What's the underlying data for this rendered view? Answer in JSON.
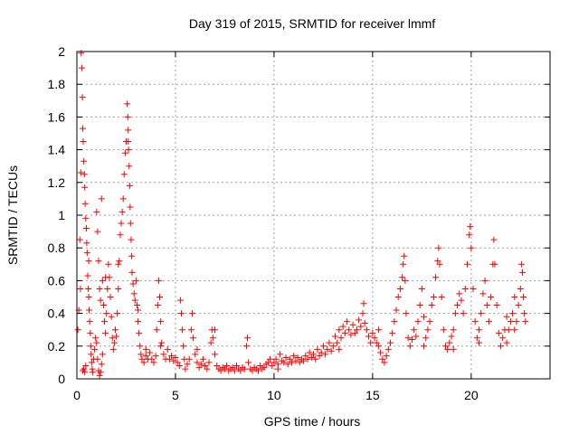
{
  "chart_data": {
    "type": "scatter",
    "title": "Day 319 of 2015, SRMTID for receiver lmmf",
    "xlabel": "GPS time / hours",
    "ylabel": "SRMTID / TECUs",
    "xlim": [
      0,
      24
    ],
    "ylim": [
      0,
      2
    ],
    "xticks": [
      "0",
      "5",
      "10",
      "15",
      "20"
    ],
    "yticks": [
      "0",
      "0.2",
      "0.4",
      "0.6",
      "0.8",
      "1",
      "1.2",
      "1.4",
      "1.6",
      "1.8",
      "2"
    ],
    "grid": true,
    "marker": "+",
    "color": "#ff0000",
    "series": [
      {
        "points": [
          [
            0.05,
            0.3
          ],
          [
            0.1,
            0.42
          ],
          [
            0.15,
            0.85
          ],
          [
            0.2,
            1.26
          ],
          [
            0.22,
            1.99
          ],
          [
            0.25,
            1.9
          ],
          [
            0.28,
            1.72
          ],
          [
            0.3,
            1.53
          ],
          [
            0.32,
            1.45
          ],
          [
            0.35,
            1.33
          ],
          [
            0.38,
            1.25
          ],
          [
            0.4,
            1.17
          ],
          [
            0.42,
            1.07
          ],
          [
            0.45,
            0.98
          ],
          [
            0.48,
            0.92
          ],
          [
            0.5,
            0.83
          ],
          [
            0.52,
            0.77
          ],
          [
            0.55,
            0.63
          ],
          [
            0.58,
            0.55
          ],
          [
            0.6,
            0.5
          ],
          [
            0.62,
            0.42
          ],
          [
            0.65,
            0.35
          ],
          [
            0.68,
            0.28
          ],
          [
            0.7,
            0.2
          ],
          [
            0.72,
            0.15
          ],
          [
            0.75,
            0.1
          ],
          [
            0.78,
            0.06
          ],
          [
            0.8,
            0.04
          ],
          [
            0.3,
            0.05
          ],
          [
            0.35,
            0.06
          ],
          [
            0.4,
            0.04
          ],
          [
            0.45,
            0.08
          ],
          [
            0.85,
            0.12
          ],
          [
            0.9,
            0.18
          ],
          [
            0.95,
            0.25
          ],
          [
            1.0,
            0.22
          ],
          [
            1.05,
            0.12
          ],
          [
            1.1,
            0.05
          ],
          [
            1.15,
            0.02
          ],
          [
            1.2,
            0.04
          ],
          [
            1.25,
            0.09
          ],
          [
            1.3,
            0.15
          ],
          [
            1.0,
            1.02
          ],
          [
            1.05,
            0.9
          ],
          [
            1.1,
            0.72
          ],
          [
            1.15,
            0.55
          ],
          [
            1.2,
            0.48
          ],
          [
            1.25,
            1.1
          ],
          [
            1.3,
            0.6
          ],
          [
            1.35,
            0.45
          ],
          [
            1.4,
            0.35
          ],
          [
            1.45,
            0.28
          ],
          [
            1.5,
            0.4
          ],
          [
            1.55,
            0.55
          ],
          [
            1.6,
            0.7
          ],
          [
            1.65,
            0.62
          ],
          [
            1.7,
            0.5
          ],
          [
            1.75,
            0.38
          ],
          [
            1.8,
            0.25
          ],
          [
            1.85,
            0.18
          ],
          [
            1.9,
            0.22
          ],
          [
            1.95,
            0.3
          ],
          [
            2.0,
            0.26
          ],
          [
            2.05,
            0.4
          ],
          [
            2.1,
            0.55
          ],
          [
            2.15,
            0.72
          ],
          [
            2.2,
            0.88
          ],
          [
            2.25,
            0.95
          ],
          [
            2.3,
            1.02
          ],
          [
            2.35,
            1.1
          ],
          [
            2.4,
            1.25
          ],
          [
            2.45,
            1.38
          ],
          [
            2.5,
            1.45
          ],
          [
            2.55,
            1.68
          ],
          [
            2.58,
            1.6
          ],
          [
            2.6,
            1.52
          ],
          [
            2.62,
            1.4
          ],
          [
            2.65,
            1.3
          ],
          [
            2.68,
            1.18
          ],
          [
            2.7,
            1.05
          ],
          [
            2.72,
            0.95
          ],
          [
            2.75,
            0.85
          ],
          [
            2.78,
            0.75
          ],
          [
            2.8,
            0.65
          ],
          [
            2.85,
            0.58
          ],
          [
            2.9,
            0.52
          ],
          [
            2.95,
            0.48
          ],
          [
            3.0,
            0.6
          ],
          [
            3.05,
            0.45
          ],
          [
            3.1,
            0.35
          ],
          [
            3.15,
            0.28
          ],
          [
            3.2,
            0.2
          ],
          [
            3.25,
            0.15
          ],
          [
            3.3,
            0.12
          ],
          [
            3.4,
            0.1
          ],
          [
            3.5,
            0.14
          ],
          [
            3.6,
            0.12
          ],
          [
            3.7,
            0.16
          ],
          [
            3.8,
            0.12
          ],
          [
            3.9,
            0.1
          ],
          [
            4.0,
            0.14
          ],
          [
            4.05,
            0.3
          ],
          [
            4.1,
            0.45
          ],
          [
            4.15,
            0.6
          ],
          [
            4.2,
            0.5
          ],
          [
            4.25,
            0.35
          ],
          [
            4.3,
            0.22
          ],
          [
            4.4,
            0.15
          ],
          [
            4.5,
            0.12
          ],
          [
            4.6,
            0.18
          ],
          [
            4.7,
            0.12
          ],
          [
            4.8,
            0.14
          ],
          [
            4.9,
            0.11
          ],
          [
            5.0,
            0.13
          ],
          [
            5.1,
            0.1
          ],
          [
            5.2,
            0.08
          ],
          [
            5.25,
            0.48
          ],
          [
            5.3,
            0.4
          ],
          [
            5.35,
            0.3
          ],
          [
            5.4,
            0.2
          ],
          [
            5.45,
            0.12
          ],
          [
            5.5,
            0.06
          ],
          [
            5.6,
            0.09
          ],
          [
            5.7,
            0.12
          ],
          [
            5.8,
            0.3
          ],
          [
            5.85,
            0.4
          ],
          [
            5.9,
            0.25
          ],
          [
            6.0,
            0.15
          ],
          [
            6.1,
            0.1
          ],
          [
            6.2,
            0.07
          ],
          [
            6.3,
            0.09
          ],
          [
            6.4,
            0.12
          ],
          [
            6.5,
            0.08
          ],
          [
            6.6,
            0.06
          ],
          [
            6.7,
            0.1
          ],
          [
            6.8,
            0.22
          ],
          [
            6.85,
            0.3
          ],
          [
            6.9,
            0.25
          ],
          [
            7.0,
            0.15
          ],
          [
            7.1,
            0.08
          ],
          [
            7.2,
            0.06
          ],
          [
            7.3,
            0.05
          ],
          [
            7.4,
            0.07
          ],
          [
            7.5,
            0.06
          ],
          [
            7.6,
            0.08
          ],
          [
            7.7,
            0.05
          ],
          [
            7.8,
            0.06
          ],
          [
            7.9,
            0.07
          ],
          [
            8.0,
            0.05
          ],
          [
            8.1,
            0.08
          ],
          [
            8.2,
            0.06
          ],
          [
            8.3,
            0.05
          ],
          [
            8.4,
            0.07
          ],
          [
            8.5,
            0.06
          ],
          [
            8.6,
            0.2
          ],
          [
            8.65,
            0.25
          ],
          [
            8.7,
            0.1
          ],
          [
            8.8,
            0.06
          ],
          [
            8.9,
            0.05
          ],
          [
            9.0,
            0.07
          ],
          [
            9.1,
            0.06
          ],
          [
            9.2,
            0.05
          ],
          [
            9.3,
            0.08
          ],
          [
            9.4,
            0.06
          ],
          [
            9.5,
            0.07
          ],
          [
            9.6,
            0.09
          ],
          [
            9.7,
            0.1
          ],
          [
            9.8,
            0.12
          ],
          [
            9.9,
            0.08
          ],
          [
            10.0,
            0.1
          ],
          [
            10.1,
            0.12
          ],
          [
            10.2,
            0.09
          ],
          [
            10.3,
            0.15
          ],
          [
            10.4,
            0.11
          ],
          [
            10.5,
            0.1
          ],
          [
            10.6,
            0.13
          ],
          [
            10.7,
            0.09
          ],
          [
            10.8,
            0.12
          ],
          [
            10.9,
            0.1
          ],
          [
            11.0,
            0.14
          ],
          [
            11.1,
            0.11
          ],
          [
            11.2,
            0.13
          ],
          [
            11.3,
            0.1
          ],
          [
            11.4,
            0.12
          ],
          [
            11.5,
            0.11
          ],
          [
            11.6,
            0.14
          ],
          [
            11.7,
            0.12
          ],
          [
            11.8,
            0.16
          ],
          [
            11.9,
            0.13
          ],
          [
            12.0,
            0.15
          ],
          [
            12.1,
            0.12
          ],
          [
            12.2,
            0.18
          ],
          [
            12.3,
            0.14
          ],
          [
            12.4,
            0.16
          ],
          [
            12.5,
            0.2
          ],
          [
            12.6,
            0.15
          ],
          [
            12.7,
            0.18
          ],
          [
            12.8,
            0.22
          ],
          [
            12.9,
            0.17
          ],
          [
            13.0,
            0.2
          ],
          [
            13.1,
            0.26
          ],
          [
            13.2,
            0.22
          ],
          [
            13.3,
            0.3
          ],
          [
            13.4,
            0.25
          ],
          [
            13.5,
            0.32
          ],
          [
            13.6,
            0.28
          ],
          [
            13.7,
            0.35
          ],
          [
            13.8,
            0.3
          ],
          [
            13.9,
            0.27
          ],
          [
            14.0,
            0.33
          ],
          [
            14.1,
            0.28
          ],
          [
            14.2,
            0.3
          ],
          [
            14.3,
            0.36
          ],
          [
            14.4,
            0.32
          ],
          [
            14.5,
            0.4
          ],
          [
            14.55,
            0.46
          ],
          [
            14.6,
            0.34
          ],
          [
            14.7,
            0.3
          ],
          [
            14.8,
            0.26
          ],
          [
            14.9,
            0.22
          ],
          [
            15.0,
            0.28
          ],
          [
            15.1,
            0.25
          ],
          [
            15.2,
            0.22
          ],
          [
            15.3,
            0.2
          ],
          [
            15.4,
            0.16
          ],
          [
            15.5,
            0.12
          ],
          [
            15.6,
            0.1
          ],
          [
            15.7,
            0.14
          ],
          [
            15.8,
            0.18
          ],
          [
            15.9,
            0.22
          ],
          [
            16.0,
            0.28
          ],
          [
            16.1,
            0.35
          ],
          [
            16.2,
            0.42
          ],
          [
            16.3,
            0.5
          ],
          [
            16.4,
            0.55
          ],
          [
            16.5,
            0.62
          ],
          [
            16.55,
            0.7
          ],
          [
            16.6,
            0.75
          ],
          [
            16.65,
            0.6
          ],
          [
            16.7,
            0.4
          ],
          [
            16.8,
            0.25
          ],
          [
            16.9,
            0.2
          ],
          [
            17.0,
            0.24
          ],
          [
            17.1,
            0.3
          ],
          [
            17.2,
            0.26
          ],
          [
            17.3,
            0.35
          ],
          [
            17.4,
            0.45
          ],
          [
            17.5,
            0.55
          ],
          [
            17.6,
            0.38
          ],
          [
            17.7,
            0.25
          ],
          [
            17.8,
            0.3
          ],
          [
            17.9,
            0.35
          ],
          [
            18.0,
            0.45
          ],
          [
            18.1,
            0.5
          ],
          [
            18.2,
            0.62
          ],
          [
            18.3,
            0.72
          ],
          [
            18.35,
            0.8
          ],
          [
            18.4,
            0.7
          ],
          [
            18.5,
            0.5
          ],
          [
            18.6,
            0.3
          ],
          [
            18.7,
            0.2
          ],
          [
            18.8,
            0.18
          ],
          [
            18.9,
            0.22
          ],
          [
            19.0,
            0.26
          ],
          [
            19.1,
            0.3
          ],
          [
            19.2,
            0.4
          ],
          [
            19.3,
            0.45
          ],
          [
            19.4,
            0.52
          ],
          [
            19.5,
            0.48
          ],
          [
            19.6,
            0.4
          ],
          [
            19.7,
            0.55
          ],
          [
            19.8,
            0.7
          ],
          [
            19.9,
            0.88
          ],
          [
            19.95,
            0.93
          ],
          [
            20.0,
            0.8
          ],
          [
            20.1,
            0.55
          ],
          [
            20.2,
            0.35
          ],
          [
            20.3,
            0.25
          ],
          [
            20.4,
            0.3
          ],
          [
            20.5,
            0.4
          ],
          [
            20.6,
            0.52
          ],
          [
            20.7,
            0.6
          ],
          [
            20.8,
            0.45
          ],
          [
            20.9,
            0.35
          ],
          [
            21.0,
            0.5
          ],
          [
            21.1,
            0.7
          ],
          [
            21.15,
            0.85
          ],
          [
            21.2,
            0.7
          ],
          [
            21.3,
            0.45
          ],
          [
            21.4,
            0.28
          ],
          [
            21.5,
            0.2
          ],
          [
            21.6,
            0.25
          ],
          [
            21.7,
            0.3
          ],
          [
            21.8,
            0.38
          ],
          [
            21.9,
            0.3
          ],
          [
            22.0,
            0.35
          ],
          [
            22.1,
            0.4
          ],
          [
            22.2,
            0.3
          ],
          [
            22.3,
            0.35
          ],
          [
            22.4,
            0.45
          ],
          [
            22.5,
            0.55
          ],
          [
            22.55,
            0.7
          ],
          [
            22.6,
            0.65
          ],
          [
            22.65,
            0.5
          ],
          [
            22.7,
            0.4
          ],
          [
            22.75,
            0.35
          ],
          [
            0.18,
            0.55
          ],
          [
            0.6,
            0.72
          ],
          [
            1.45,
            0.62
          ],
          [
            2.1,
            0.7
          ],
          [
            2.6,
            1.45
          ],
          [
            3.1,
            0.42
          ],
          [
            3.5,
            0.18
          ],
          [
            4.25,
            0.2
          ],
          [
            6.1,
            0.18
          ],
          [
            7.0,
            0.3
          ],
          [
            10.2,
            0.06
          ],
          [
            13.3,
            0.18
          ],
          [
            15.3,
            0.3
          ],
          [
            17.6,
            0.2
          ],
          [
            19.1,
            0.18
          ],
          [
            20.4,
            0.22
          ],
          [
            21.8,
            0.22
          ],
          [
            22.2,
            0.5
          ]
        ]
      }
    ]
  }
}
